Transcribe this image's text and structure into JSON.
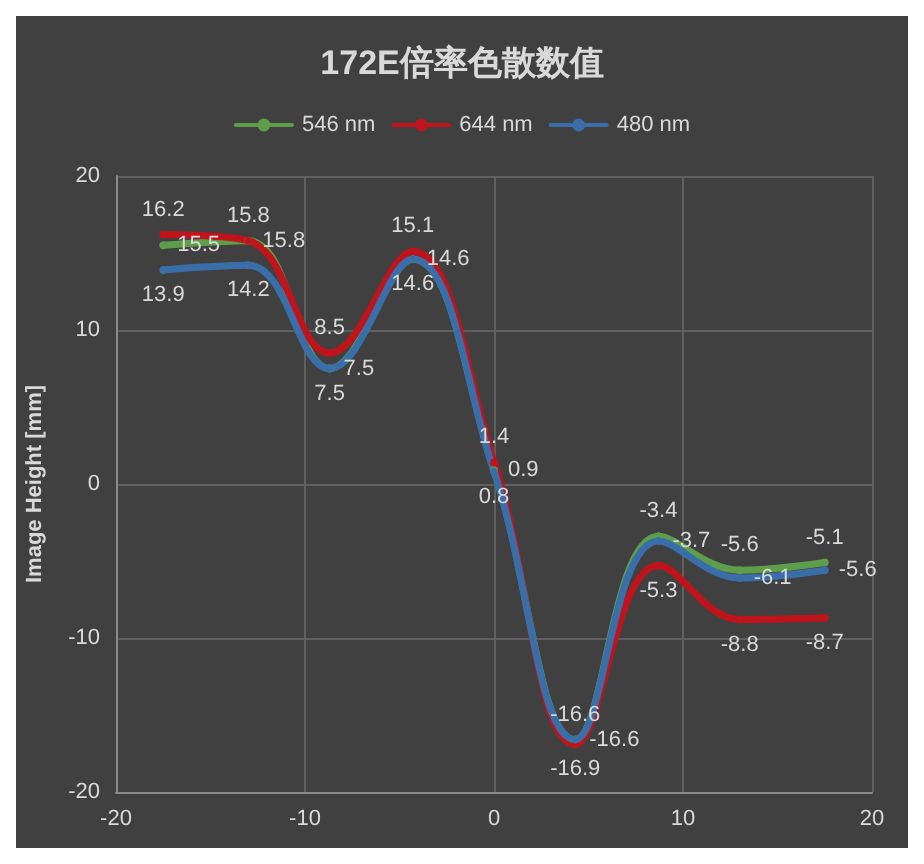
{
  "chart_data": {
    "type": "line",
    "title": "172E倍率色散数值",
    "ylabel": "Image Height [mm]",
    "x": [
      -17.5,
      -13,
      -8.7,
      -4.3,
      0,
      4.3,
      8.7,
      13,
      17.5
    ],
    "series": [
      {
        "name": "546 nm",
        "color": "#5e9e4a",
        "values": [
          15.5,
          15.8,
          7.5,
          14.6,
          0.9,
          -16.6,
          -3.4,
          -5.6,
          -5.1
        ]
      },
      {
        "name": "644 nm",
        "color": "#c0141c",
        "values": [
          16.2,
          15.8,
          8.5,
          15.1,
          1.4,
          -16.9,
          -5.3,
          -8.8,
          -8.7
        ]
      },
      {
        "name": "480 nm",
        "color": "#3a6ea8",
        "values": [
          13.9,
          14.2,
          7.5,
          14.6,
          0.8,
          -16.6,
          -3.7,
          -6.1,
          -5.6
        ]
      }
    ],
    "xlim": [
      -20,
      20
    ],
    "xticks": [
      -20,
      -10,
      0,
      10,
      20
    ],
    "ylim": [
      -20,
      20
    ],
    "yticks": [
      -20,
      -10,
      0,
      10,
      20
    ],
    "grid": true,
    "legend": "top",
    "marker": "circle",
    "line_style": "solid",
    "data_labels": true
  }
}
